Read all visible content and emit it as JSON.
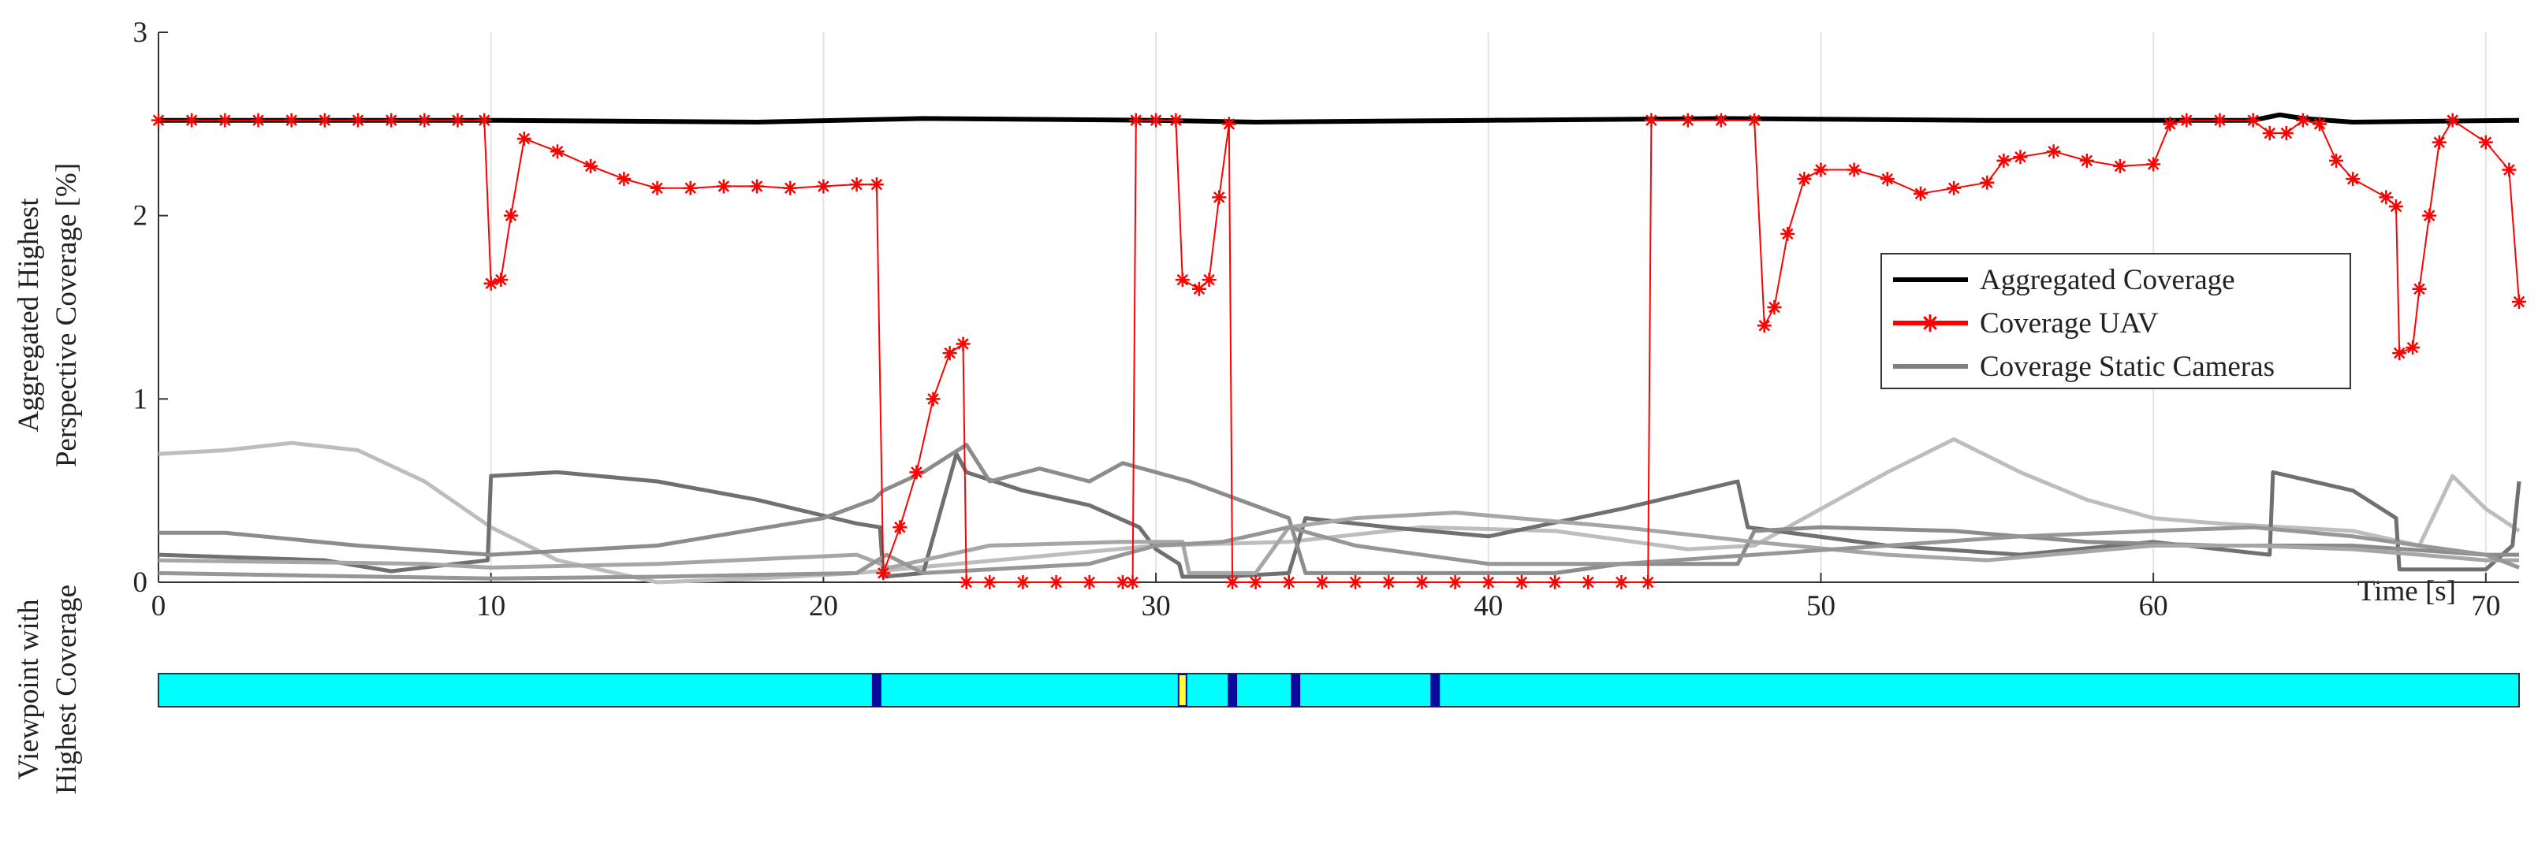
{
  "chart_data": [
    {
      "type": "line",
      "ylabel": [
        "Aggregated Highest",
        "Perspective Coverage [%]"
      ],
      "xlabel": "Time [s]",
      "xlim": [
        0,
        71
      ],
      "xticks": [
        0,
        10,
        20,
        30,
        40,
        50,
        60,
        70
      ],
      "ylim": [
        0,
        3
      ],
      "yticks": [
        0,
        1,
        2,
        3
      ],
      "grid": "x",
      "legend": "upper right",
      "series": [
        {
          "name": "Aggregated Coverage",
          "color": "#000000",
          "x": [
            0,
            10,
            18,
            23,
            30,
            33,
            40,
            47,
            55,
            63,
            63.8,
            64.5,
            66,
            71
          ],
          "values": [
            2.52,
            2.52,
            2.51,
            2.53,
            2.52,
            2.51,
            2.52,
            2.53,
            2.52,
            2.52,
            2.55,
            2.53,
            2.51,
            2.52
          ]
        },
        {
          "name": "Coverage UAV",
          "color": "#ff0000",
          "marker": "asterisk",
          "x": [
            0,
            1,
            2,
            3,
            4,
            5,
            6,
            7,
            8,
            9,
            9.8,
            10,
            10.3,
            10.6,
            11,
            12,
            13,
            14,
            15,
            16,
            17,
            18,
            19,
            20,
            21,
            21.6,
            21.8,
            22.3,
            22.8,
            23.3,
            23.8,
            24.2,
            24.3,
            25,
            26,
            27,
            28,
            29,
            29.3,
            29.4,
            30,
            30.6,
            30.8,
            31.3,
            31.6,
            31.9,
            32.2,
            32.3,
            33,
            34,
            35,
            36,
            37,
            38,
            39,
            40,
            41,
            42,
            43,
            44,
            44.8,
            44.9,
            46,
            47,
            48,
            48.3,
            48.6,
            49,
            49.5,
            50,
            51,
            52,
            53,
            54,
            55,
            55.5,
            56,
            57,
            58,
            59,
            60,
            60.5,
            61,
            62,
            63,
            63.5,
            64,
            64.5,
            65,
            65.5,
            66,
            67,
            67.3,
            67.4,
            67.8,
            68,
            68.3,
            68.6,
            69,
            70,
            70.7,
            71
          ],
          "values": [
            2.52,
            2.52,
            2.52,
            2.52,
            2.52,
            2.52,
            2.52,
            2.52,
            2.52,
            2.52,
            2.52,
            1.63,
            1.65,
            2.0,
            2.42,
            2.35,
            2.27,
            2.2,
            2.15,
            2.15,
            2.16,
            2.16,
            2.15,
            2.16,
            2.17,
            2.17,
            0.05,
            0.3,
            0.6,
            1.0,
            1.25,
            1.3,
            0,
            0,
            0,
            0,
            0,
            0,
            0,
            2.52,
            2.52,
            2.52,
            1.65,
            1.6,
            1.65,
            2.1,
            2.5,
            0,
            0,
            0,
            0,
            0,
            0,
            0,
            0,
            0,
            0,
            0,
            0,
            0,
            0,
            2.52,
            2.52,
            2.52,
            2.52,
            1.4,
            1.5,
            1.9,
            2.2,
            2.25,
            2.25,
            2.2,
            2.12,
            2.15,
            2.18,
            2.3,
            2.32,
            2.35,
            2.3,
            2.27,
            2.28,
            2.5,
            2.52,
            2.52,
            2.52,
            2.45,
            2.45,
            2.52,
            2.5,
            2.3,
            2.2,
            2.1,
            2.05,
            1.25,
            1.28,
            1.6,
            2.0,
            2.4,
            2.52,
            2.4,
            2.25,
            1.53
          ]
        },
        {
          "name": "Coverage Static Cameras",
          "color": "#808080",
          "lines": [
            {
              "color": "#bdbdbd",
              "x": [
                0,
                2,
                4,
                6,
                8,
                10,
                12,
                15,
                18,
                21,
                24,
                27,
                30,
                34,
                38,
                42,
                46,
                48,
                50,
                52,
                54,
                56,
                58,
                60,
                62,
                64,
                66,
                68,
                69,
                70,
                71
              ],
              "values": [
                0.7,
                0.72,
                0.76,
                0.72,
                0.55,
                0.3,
                0.12,
                0,
                0.02,
                0.05,
                0.1,
                0.15,
                0.2,
                0.22,
                0.3,
                0.28,
                0.18,
                0.2,
                0.4,
                0.6,
                0.78,
                0.6,
                0.45,
                0.35,
                0.32,
                0.3,
                0.28,
                0.2,
                0.58,
                0.4,
                0.28
              ]
            },
            {
              "color": "#707070",
              "x": [
                0,
                5,
                7,
                9.9,
                10,
                12,
                15,
                18,
                21,
                21.7,
                21.8,
                23,
                24,
                24.3,
                26,
                28,
                29.5,
                30,
                30.7,
                30.8,
                32,
                34,
                34.5,
                37,
                40,
                44,
                47.5,
                47.8,
                52,
                56,
                60,
                63.5,
                63.6,
                66,
                67.3,
                67.4,
                70,
                70.8,
                71
              ],
              "values": [
                0.15,
                0.12,
                0.06,
                0.12,
                0.58,
                0.6,
                0.55,
                0.45,
                0.32,
                0.3,
                0.03,
                0.05,
                0.7,
                0.6,
                0.5,
                0.42,
                0.3,
                0.18,
                0.1,
                0.03,
                0.03,
                0.05,
                0.35,
                0.3,
                0.25,
                0.4,
                0.55,
                0.3,
                0.2,
                0.15,
                0.22,
                0.15,
                0.6,
                0.5,
                0.35,
                0.07,
                0.07,
                0.2,
                0.55
              ]
            },
            {
              "color": "#8c8c8c",
              "x": [
                0,
                2,
                6,
                10,
                15,
                20,
                21.5,
                21.8,
                23,
                24.3,
                25,
                26.5,
                28,
                29,
                31,
                34,
                34.5,
                38,
                42,
                44,
                47.5,
                48,
                50,
                54,
                58,
                62,
                66,
                70,
                71
              ],
              "values": [
                0.27,
                0.27,
                0.2,
                0.15,
                0.2,
                0.35,
                0.45,
                0.5,
                0.6,
                0.75,
                0.55,
                0.62,
                0.55,
                0.65,
                0.55,
                0.35,
                0.05,
                0.05,
                0.05,
                0.1,
                0.1,
                0.28,
                0.3,
                0.28,
                0.22,
                0.2,
                0.2,
                0.15,
                0.15
              ]
            },
            {
              "color": "#a6a6a6",
              "x": [
                0,
                8,
                10,
                15,
                21,
                22,
                25,
                29,
                30.8,
                31,
                33,
                34,
                36,
                39,
                44,
                48,
                52,
                55,
                60,
                63,
                66,
                70,
                71
              ],
              "values": [
                0.12,
                0.1,
                0.08,
                0.1,
                0.15,
                0.08,
                0.2,
                0.22,
                0.22,
                0.05,
                0.05,
                0.3,
                0.35,
                0.38,
                0.3,
                0.22,
                0.15,
                0.12,
                0.2,
                0.2,
                0.18,
                0.12,
                0.12
              ]
            },
            {
              "color": "#969696",
              "x": [
                0,
                10,
                15,
                21,
                21.9,
                23,
                28,
                30,
                32,
                34,
                36,
                40,
                44,
                48,
                52,
                56,
                60,
                63,
                66,
                70,
                71
              ],
              "values": [
                0.05,
                0.02,
                0.03,
                0.05,
                0.15,
                0.05,
                0.1,
                0.2,
                0.22,
                0.3,
                0.2,
                0.1,
                0.1,
                0.15,
                0.2,
                0.25,
                0.28,
                0.3,
                0.25,
                0.15,
                0.08
              ]
            }
          ]
        }
      ]
    },
    {
      "type": "strip",
      "ylabel": [
        "Viewpoint with",
        "Highest Coverage"
      ],
      "xlim": [
        0,
        71
      ],
      "background": "#00ffff",
      "x": [
        21.6,
        30.8,
        32.3,
        34.2,
        38.4
      ],
      "colors": [
        "#0a0a9c",
        "#ffff33",
        "#0a0a9c",
        "#0a0a9c",
        "#0a0a9c"
      ]
    }
  ]
}
